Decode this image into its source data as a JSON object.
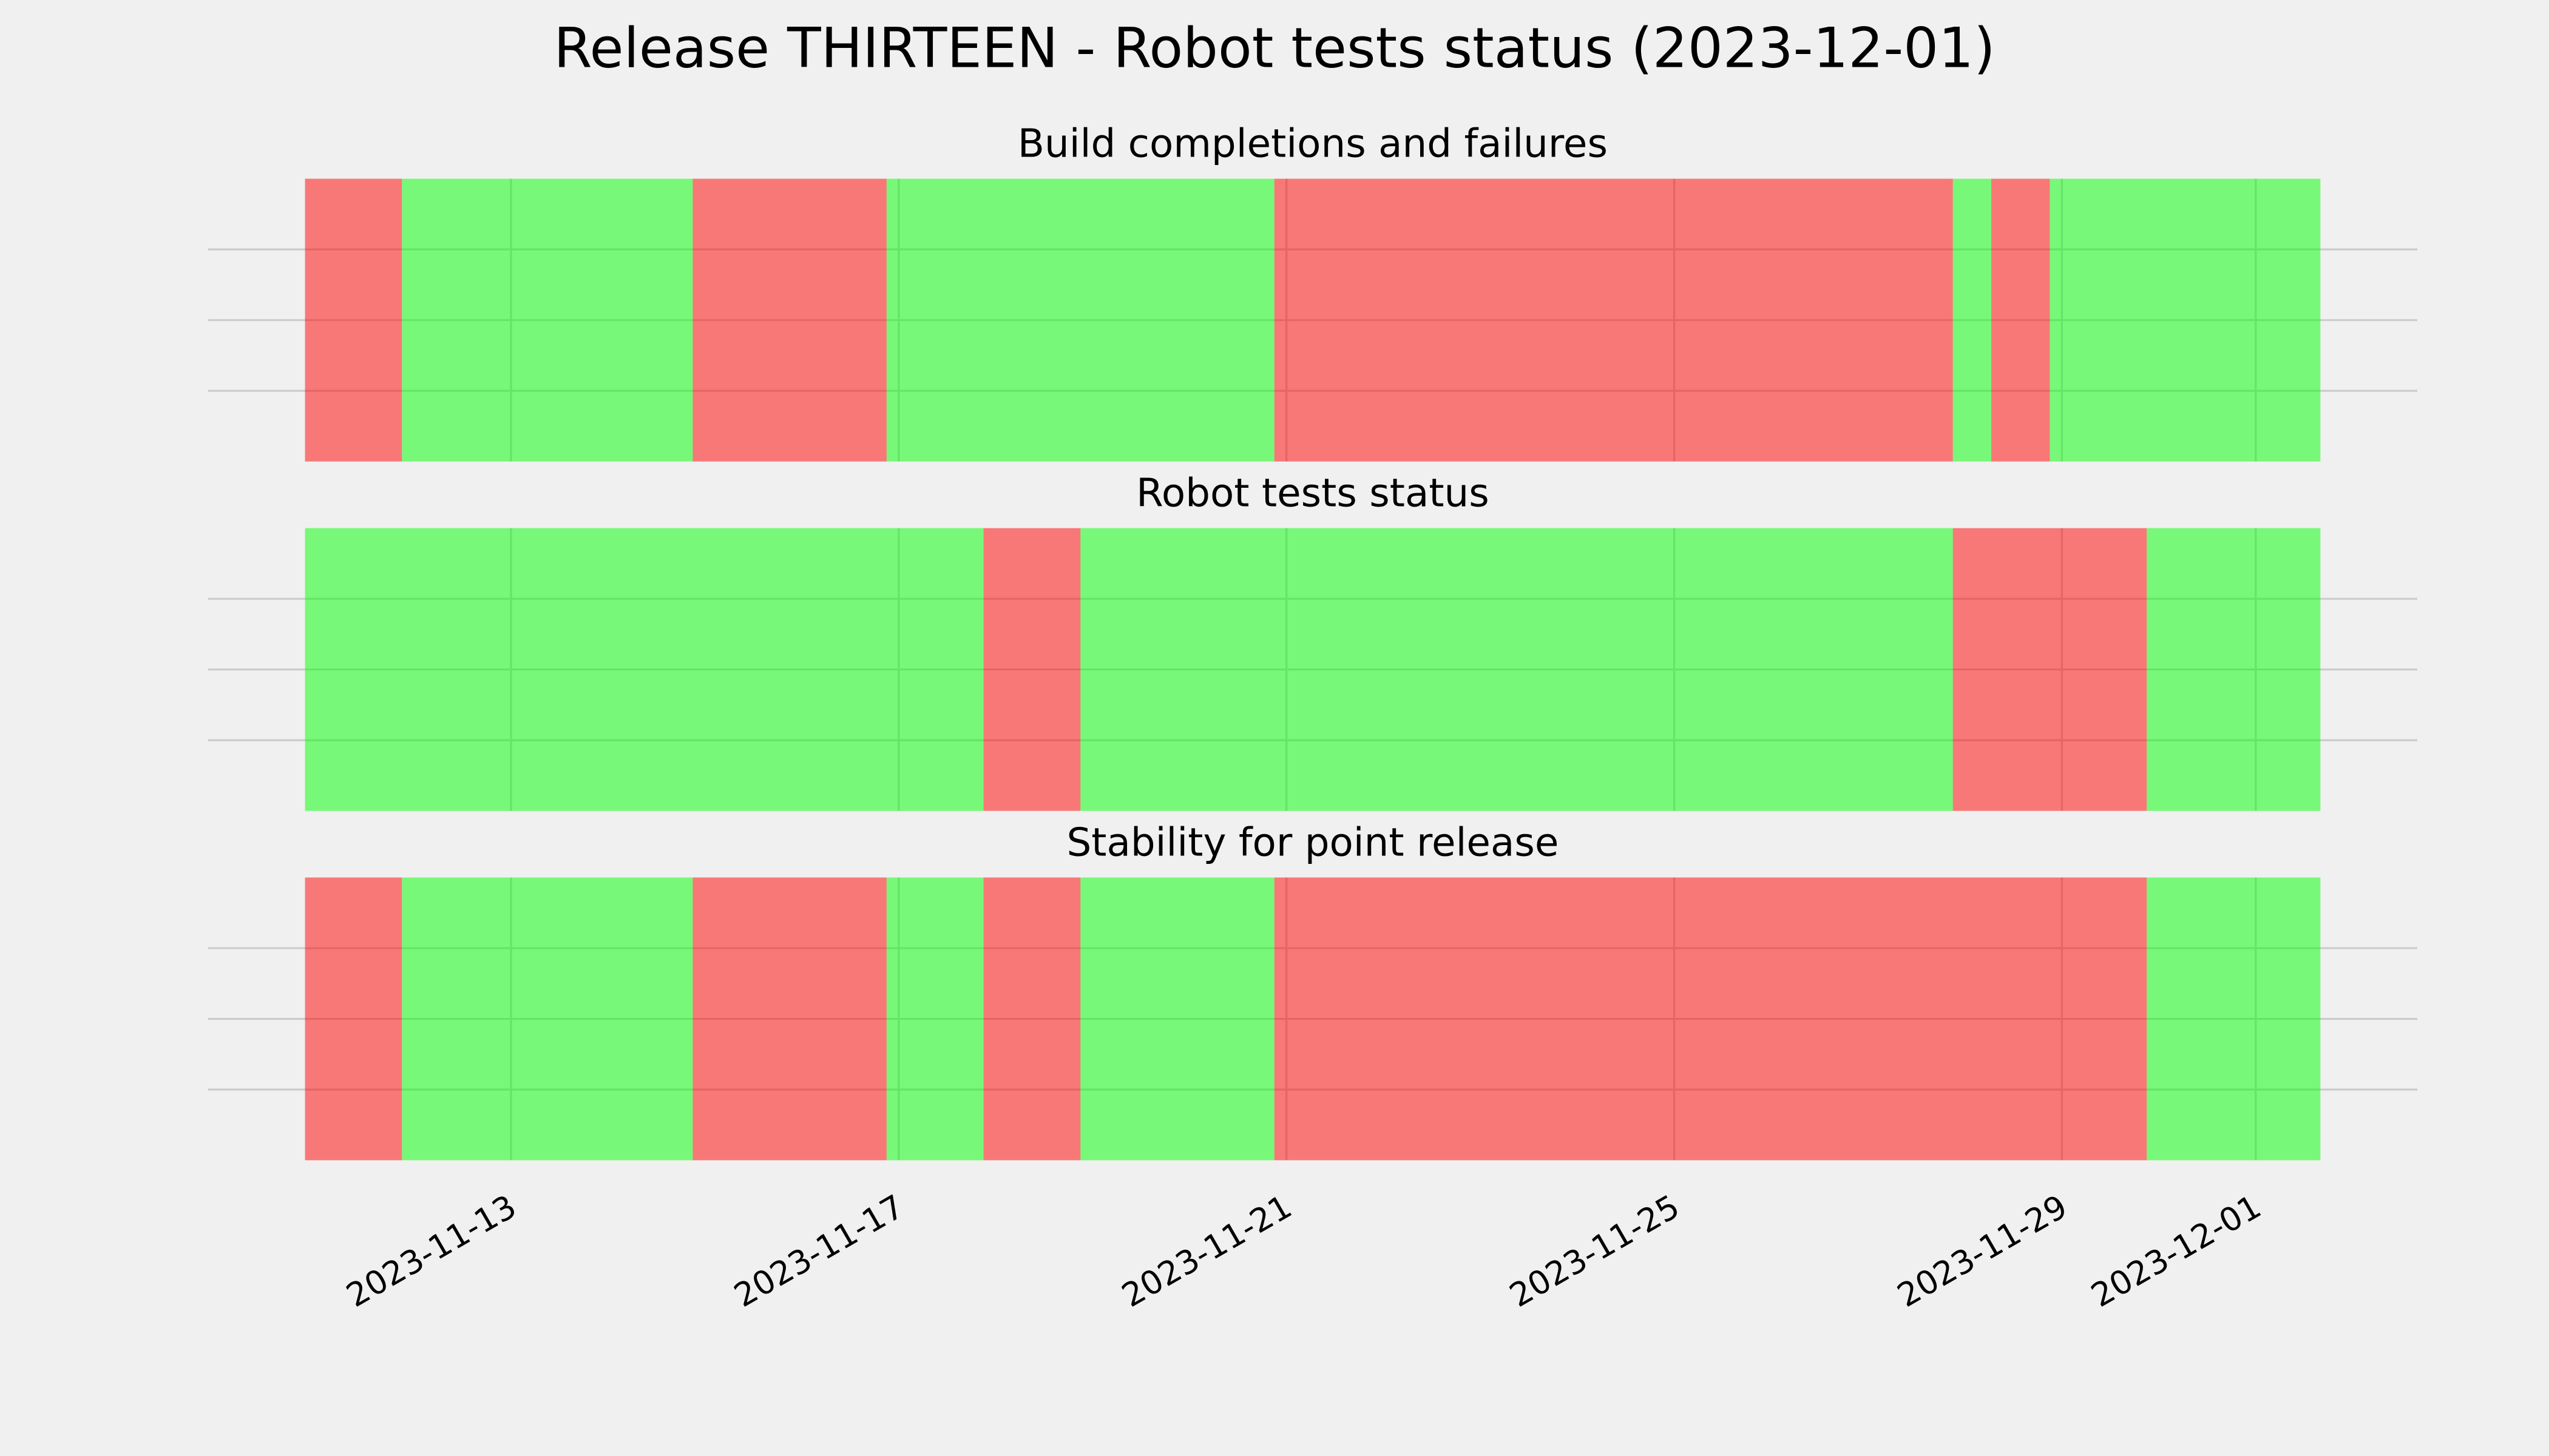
{
  "chart_data": {
    "type": "timeline",
    "title": "Release THIRTEEN - Robot tests status (2023-12-01)",
    "xlim": [
      "2023-11-09T21:00",
      "2023-12-02T16:00"
    ],
    "xticks": [
      "2023-11-13",
      "2023-11-17",
      "2023-11-21",
      "2023-11-25",
      "2023-11-29",
      "2023-12-01"
    ],
    "ylim": [
      0,
      1
    ],
    "yticks": [
      0.25,
      0.5,
      0.75
    ],
    "grid": true,
    "alpha": 0.5,
    "panels": [
      {
        "title": "Build completions and failures",
        "spans": [
          {
            "start": "2023-11-10T21:00",
            "end": "2023-11-11T21:00",
            "color": "#ff0000"
          },
          {
            "start": "2023-11-11T21:00",
            "end": "2023-11-14T21:00",
            "color": "#00ff00"
          },
          {
            "start": "2023-11-14T21:00",
            "end": "2023-11-16T21:00",
            "color": "#ff0000"
          },
          {
            "start": "2023-11-16T21:00",
            "end": "2023-11-20T21:00",
            "color": "#00ff00"
          },
          {
            "start": "2023-11-20T21:00",
            "end": "2023-11-27T21:00",
            "color": "#ff0000"
          },
          {
            "start": "2023-11-27T21:00",
            "end": "2023-11-28T06:30",
            "color": "#00ff00"
          },
          {
            "start": "2023-11-28T06:30",
            "end": "2023-11-28T21:00",
            "color": "#ff0000"
          },
          {
            "start": "2023-11-28T21:00",
            "end": "2023-12-01T16:00",
            "color": "#00ff00"
          }
        ]
      },
      {
        "title": "Robot tests status",
        "spans": [
          {
            "start": "2023-11-10T21:00",
            "end": "2023-11-17T21:00",
            "color": "#00ff00"
          },
          {
            "start": "2023-11-17T21:00",
            "end": "2023-11-18T21:00",
            "color": "#ff0000"
          },
          {
            "start": "2023-11-18T21:00",
            "end": "2023-11-27T21:00",
            "color": "#00ff00"
          },
          {
            "start": "2023-11-27T21:00",
            "end": "2023-11-29T21:00",
            "color": "#ff0000"
          },
          {
            "start": "2023-11-29T21:00",
            "end": "2023-12-01T16:00",
            "color": "#00ff00"
          }
        ]
      },
      {
        "title": "Stability for point release",
        "spans": [
          {
            "start": "2023-11-10T21:00",
            "end": "2023-11-11T21:00",
            "color": "#ff0000"
          },
          {
            "start": "2023-11-11T21:00",
            "end": "2023-11-14T21:00",
            "color": "#00ff00"
          },
          {
            "start": "2023-11-14T21:00",
            "end": "2023-11-16T21:00",
            "color": "#ff0000"
          },
          {
            "start": "2023-11-16T21:00",
            "end": "2023-11-17T21:00",
            "color": "#00ff00"
          },
          {
            "start": "2023-11-17T21:00",
            "end": "2023-11-18T21:00",
            "color": "#ff0000"
          },
          {
            "start": "2023-11-18T21:00",
            "end": "2023-11-20T21:00",
            "color": "#00ff00"
          },
          {
            "start": "2023-11-20T21:00",
            "end": "2023-11-29T21:00",
            "color": "#ff0000"
          },
          {
            "start": "2023-11-29T21:00",
            "end": "2023-12-01T16:00",
            "color": "#00ff00"
          }
        ]
      }
    ]
  }
}
